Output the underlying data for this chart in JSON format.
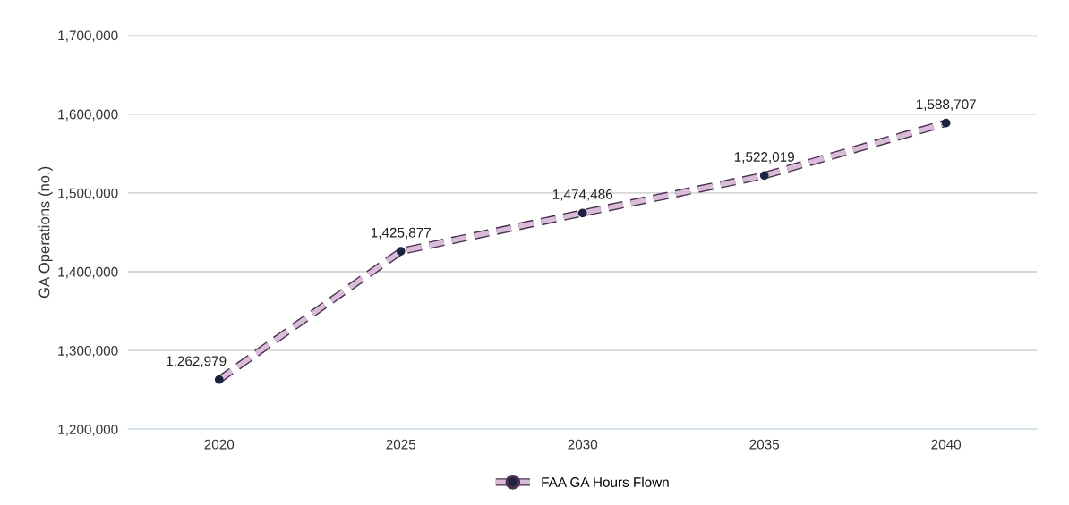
{
  "chart_data": {
    "type": "line",
    "ylabel": "GA Operations (no.)",
    "categories": [
      "2020",
      "2025",
      "2030",
      "2035",
      "2040"
    ],
    "series": [
      {
        "name": "FAA GA Hours Flown",
        "color": "#d8bcd8",
        "values": [
          1262979,
          1425877,
          1474486,
          1522019,
          1588707
        ],
        "value_labels": [
          "1,262,979",
          "1,425,877",
          "1,474,486",
          "1,522,019",
          "1,588,707"
        ]
      }
    ],
    "ylim": [
      1200000,
      1700000
    ],
    "yticks": [
      {
        "value": 1200000,
        "label": "1,200,000"
      },
      {
        "value": 1300000,
        "label": "1,300,000"
      },
      {
        "value": 1400000,
        "label": "1,400,000"
      },
      {
        "value": 1500000,
        "label": "1,500,000"
      },
      {
        "value": 1600000,
        "label": "1,600,000"
      },
      {
        "value": 1700000,
        "label": "1,700,000"
      }
    ],
    "grid": "y",
    "legend": "bottom",
    "marker": "circle",
    "line_style": "dashed"
  }
}
